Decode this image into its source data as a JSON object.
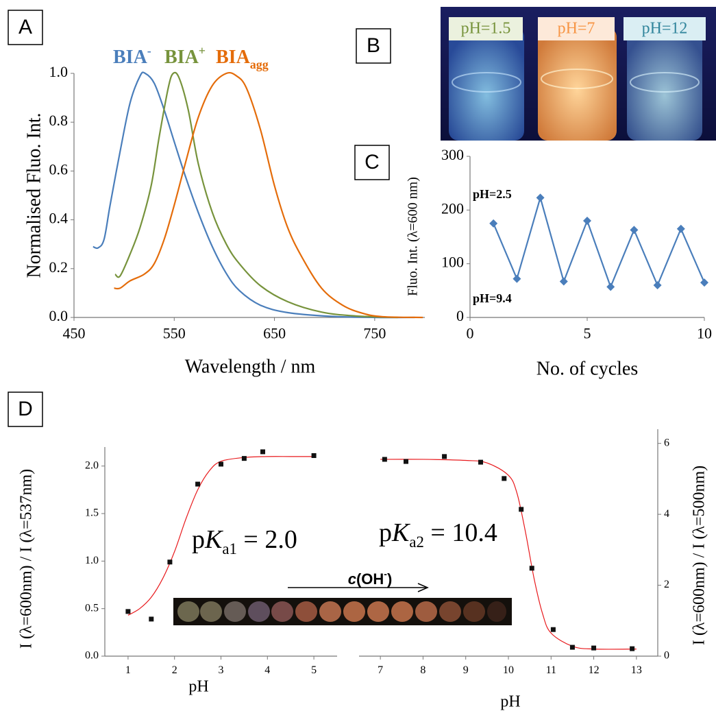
{
  "chart_data": [
    {
      "type": "line",
      "panel_label": "A",
      "x_label": "Wavelength / nm",
      "y_label": "Normalised Fluo. Int.",
      "xlim": [
        450,
        800
      ],
      "xticks": [
        450,
        550,
        650,
        750
      ],
      "ylim": [
        0,
        1
      ],
      "yticks": [
        {
          "value": 0,
          "label": "0.0"
        },
        {
          "value": 0.2,
          "label": "0.2"
        },
        {
          "value": 0.4,
          "label": "0.4"
        },
        {
          "value": 0.6,
          "label": "0.6"
        },
        {
          "value": 0.8,
          "label": "0.8"
        },
        {
          "value": 1,
          "label": "1.0"
        }
      ],
      "series": [
        {
          "name": "BIA",
          "name_script": "-",
          "script_position": "super",
          "color": "#4a7ebb",
          "x": [
            469,
            474,
            480,
            486,
            496,
            506,
            516,
            521,
            530,
            540,
            550,
            561,
            574,
            588,
            602,
            615,
            636,
            663,
            704,
            750,
            790
          ],
          "values": [
            0.29,
            0.285,
            0.32,
            0.46,
            0.68,
            0.88,
            0.99,
            1.0,
            0.96,
            0.85,
            0.72,
            0.58,
            0.43,
            0.29,
            0.18,
            0.11,
            0.05,
            0.02,
            0.005,
            0,
            0
          ]
        },
        {
          "name": "BIA",
          "name_script": "+",
          "script_position": "super",
          "color": "#77933c",
          "x": [
            491,
            496,
            506,
            516,
            527,
            535,
            544,
            549,
            555,
            564,
            574,
            588,
            602,
            615,
            636,
            663,
            697,
            731,
            773
          ],
          "values": [
            0.177,
            0.17,
            0.26,
            0.37,
            0.54,
            0.74,
            0.94,
            1.0,
            0.98,
            0.85,
            0.63,
            0.43,
            0.3,
            0.22,
            0.13,
            0.065,
            0.022,
            0.006,
            0
          ]
        },
        {
          "name": "BIA",
          "name_script": "agg",
          "script_position": "sub",
          "color": "#e46c0a",
          "x": [
            490,
            496,
            506,
            520,
            530,
            540,
            550,
            561,
            574,
            588,
            602,
            612,
            622,
            636,
            650,
            663,
            677,
            697,
            718,
            738,
            758,
            798
          ],
          "values": [
            0.12,
            0.12,
            0.15,
            0.177,
            0.22,
            0.32,
            0.46,
            0.63,
            0.82,
            0.95,
            1.0,
            0.99,
            0.94,
            0.77,
            0.54,
            0.37,
            0.25,
            0.12,
            0.05,
            0.017,
            0.003,
            0
          ]
        }
      ]
    },
    {
      "type": "line",
      "panel_label": "C",
      "x_label": "No. of cycles",
      "y_label": "Fluo. Int. (λ=600 nm)",
      "xlim": [
        0,
        10
      ],
      "xticks": [
        0,
        5,
        10
      ],
      "ylim": [
        0,
        300
      ],
      "yticks": [
        0,
        100,
        200,
        300
      ],
      "marker": "diamond",
      "series": [
        {
          "color": "#4a7ebb",
          "x": [
            1,
            2,
            3,
            4,
            5,
            6,
            7,
            8,
            9,
            10
          ],
          "values": [
            175,
            72,
            223,
            67,
            180,
            57,
            163,
            60,
            165,
            65
          ]
        }
      ],
      "annotations": [
        {
          "parts": [
            "pH=2.5"
          ]
        },
        {
          "parts": [
            "pH=9.4"
          ]
        }
      ]
    },
    {
      "type": "scatter",
      "panel_label": "D",
      "x_label": "pH",
      "y_label": "I (λ=600nm) / I (λ=537nm)",
      "y_axis_side": "left",
      "xlim": [
        0.5,
        5.5
      ],
      "xticks": [
        1,
        2,
        3,
        4,
        5
      ],
      "ylim": [
        0,
        2.2
      ],
      "yticks": [
        {
          "value": 0,
          "label": "0.0"
        },
        {
          "value": 0.5,
          "label": "0.5"
        },
        {
          "value": 1,
          "label": "1.0"
        },
        {
          "value": 1.5,
          "label": "1.5"
        },
        {
          "value": 2,
          "label": "2.0"
        }
      ],
      "series": [
        {
          "color": "#111111",
          "x": [
            1,
            1.5,
            1.9,
            2.5,
            3,
            3.5,
            3.9,
            5
          ],
          "values": [
            0.47,
            0.39,
            0.99,
            1.81,
            2.02,
            2.08,
            2.15,
            2.11
          ]
        }
      ],
      "fit": {
        "color": "#e8191c",
        "x": [
          1,
          1.25,
          1.5,
          1.75,
          2,
          2.25,
          2.5,
          2.75,
          3,
          3.5,
          4,
          4.5,
          5
        ],
        "values": [
          0.43,
          0.5,
          0.62,
          0.82,
          1.1,
          1.45,
          1.75,
          1.95,
          2.05,
          2.09,
          2.1,
          2.1,
          2.1
        ]
      },
      "annotations": [
        {
          "parts": [
            "p",
            "K",
            "a1",
            " = 2.0"
          ]
        }
      ]
    },
    {
      "type": "scatter",
      "x_label": "pH",
      "y_label": "I (λ=600nm) / I (λ=500nm)",
      "y_axis_side": "right",
      "xlim": [
        6.5,
        13.5
      ],
      "xticks": [
        7,
        8,
        9,
        10,
        11,
        12,
        13
      ],
      "ylim": [
        0,
        6.4
      ],
      "yticks": [
        0,
        2,
        4,
        6
      ],
      "series": [
        {
          "color": "#111111",
          "x": [
            7.1,
            7.6,
            8.5,
            9.35,
            9.9,
            10.3,
            10.55,
            11.05,
            11.5,
            12,
            12.9
          ],
          "values": [
            5.55,
            5.49,
            5.63,
            5.47,
            5.01,
            4.14,
            2.48,
            0.75,
            0.25,
            0.23,
            0.21
          ]
        }
      ],
      "fit": {
        "color": "#e8191c",
        "x": [
          7,
          8,
          9,
          9.5,
          10,
          10.2,
          10.4,
          10.6,
          10.8,
          11,
          11.5,
          12,
          13
        ],
        "values": [
          5.55,
          5.55,
          5.52,
          5.45,
          5.1,
          4.6,
          3.5,
          2.2,
          1.2,
          0.65,
          0.28,
          0.2,
          0.2
        ]
      },
      "annotations": [
        {
          "parts": [
            "p",
            "K",
            "a2",
            " = 10.4"
          ]
        }
      ]
    }
  ],
  "photo_b": {
    "panel_label": "B",
    "labels": [
      "pH=1.5",
      "pH=7",
      "pH=12"
    ]
  },
  "strip_d": {
    "arrow_label": [
      "c",
      "(OH",
      "-",
      ")"
    ]
  }
}
